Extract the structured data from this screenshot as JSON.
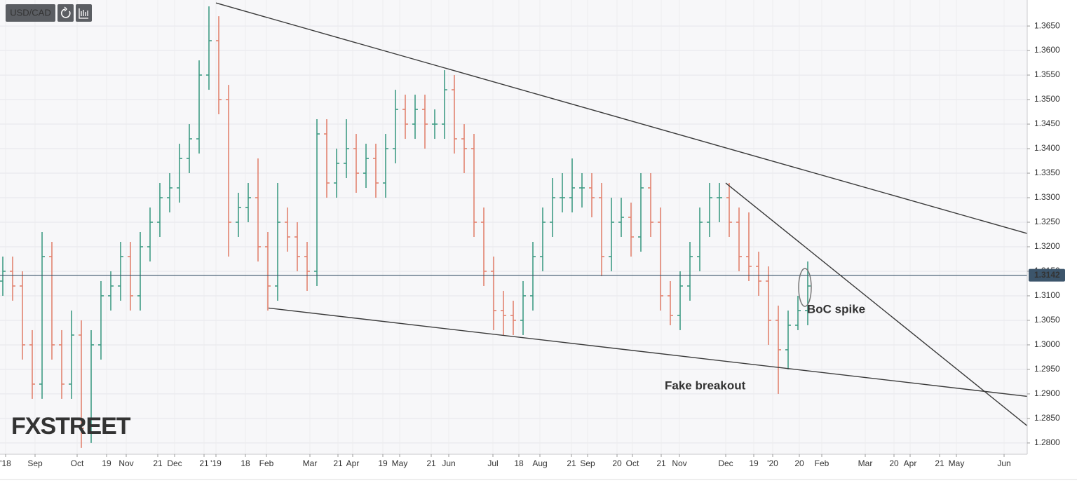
{
  "chart_data": {
    "type": "ohlc",
    "title": "USD/CAD",
    "watermark": "FXSTREET",
    "x": [
      2,
      9,
      16,
      23,
      30,
      37,
      44,
      51,
      58,
      65,
      72,
      79,
      86,
      93,
      100,
      107,
      114,
      121,
      128,
      135,
      142,
      149,
      156,
      163,
      170,
      177,
      184,
      191,
      198,
      205,
      212,
      219,
      226,
      233,
      240,
      247,
      254,
      261,
      268,
      275,
      282,
      289,
      296,
      303,
      310,
      317,
      324,
      331,
      338,
      345,
      352,
      359,
      366,
      373,
      380,
      387,
      394,
      401,
      408,
      415,
      422,
      429,
      436,
      443,
      450,
      457,
      464,
      471,
      478,
      485,
      492,
      499,
      506,
      513,
      520,
      527,
      534,
      541,
      548,
      555,
      562,
      569,
      576
    ],
    "open": [
      1.313,
      1.315,
      1.312,
      1.3,
      1.292,
      1.318,
      1.3,
      1.292,
      1.302,
      1.283,
      1.3,
      1.31,
      1.312,
      1.318,
      1.31,
      1.32,
      1.325,
      1.33,
      1.332,
      1.338,
      1.342,
      1.355,
      1.362,
      1.35,
      1.325,
      1.328,
      1.33,
      1.32,
      1.312,
      1.325,
      1.322,
      1.318,
      1.315,
      1.343,
      1.333,
      1.337,
      1.34,
      1.335,
      1.338,
      1.333,
      1.34,
      1.348,
      1.345,
      1.348,
      1.345,
      1.345,
      1.352,
      1.342,
      1.34,
      1.325,
      1.315,
      1.307,
      1.306,
      1.305,
      1.31,
      1.318,
      1.325,
      1.33,
      1.33,
      1.332,
      1.332,
      1.33,
      1.318,
      1.325,
      1.326,
      1.322,
      1.332,
      1.325,
      1.31,
      1.306,
      1.312,
      1.318,
      1.325,
      1.33,
      1.33,
      1.325,
      1.318,
      1.316,
      1.313,
      1.305,
      1.299,
      1.304,
      1.307
    ],
    "high": [
      1.318,
      1.318,
      1.315,
      1.303,
      1.323,
      1.321,
      1.303,
      1.307,
      1.305,
      1.303,
      1.313,
      1.315,
      1.321,
      1.321,
      1.323,
      1.328,
      1.333,
      1.335,
      1.341,
      1.345,
      1.358,
      1.369,
      1.367,
      1.353,
      1.331,
      1.333,
      1.338,
      1.323,
      1.333,
      1.328,
      1.325,
      1.321,
      1.346,
      1.346,
      1.34,
      1.346,
      1.343,
      1.341,
      1.341,
      1.343,
      1.352,
      1.351,
      1.351,
      1.351,
      1.348,
      1.356,
      1.355,
      1.345,
      1.343,
      1.328,
      1.318,
      1.311,
      1.309,
      1.313,
      1.321,
      1.328,
      1.334,
      1.335,
      1.338,
      1.335,
      1.335,
      1.333,
      1.33,
      1.33,
      1.329,
      1.335,
      1.335,
      1.328,
      1.313,
      1.315,
      1.321,
      1.328,
      1.333,
      1.333,
      1.333,
      1.328,
      1.327,
      1.319,
      1.316,
      1.308,
      1.307,
      1.31,
      1.317
    ],
    "low": [
      1.31,
      1.309,
      1.297,
      1.289,
      1.289,
      1.297,
      1.289,
      1.289,
      1.279,
      1.28,
      1.297,
      1.307,
      1.309,
      1.307,
      1.307,
      1.317,
      1.322,
      1.327,
      1.329,
      1.335,
      1.339,
      1.352,
      1.347,
      1.318,
      1.322,
      1.325,
      1.317,
      1.307,
      1.309,
      1.319,
      1.315,
      1.311,
      1.312,
      1.33,
      1.33,
      1.334,
      1.331,
      1.332,
      1.33,
      1.33,
      1.337,
      1.342,
      1.342,
      1.34,
      1.342,
      1.342,
      1.339,
      1.335,
      1.322,
      1.312,
      1.303,
      1.302,
      1.302,
      1.302,
      1.307,
      1.315,
      1.322,
      1.327,
      1.327,
      1.328,
      1.326,
      1.314,
      1.315,
      1.322,
      1.318,
      1.319,
      1.322,
      1.307,
      1.304,
      1.303,
      1.309,
      1.315,
      1.322,
      1.325,
      1.322,
      1.315,
      1.313,
      1.31,
      1.3,
      1.29,
      1.295,
      1.303,
      1.304
    ],
    "close": [
      1.315,
      1.312,
      1.3,
      1.292,
      1.318,
      1.3,
      1.292,
      1.302,
      1.283,
      1.3,
      1.31,
      1.312,
      1.318,
      1.31,
      1.32,
      1.325,
      1.33,
      1.332,
      1.338,
      1.342,
      1.355,
      1.362,
      1.35,
      1.325,
      1.328,
      1.33,
      1.32,
      1.312,
      1.325,
      1.322,
      1.318,
      1.315,
      1.343,
      1.333,
      1.337,
      1.34,
      1.335,
      1.338,
      1.333,
      1.34,
      1.348,
      1.345,
      1.348,
      1.345,
      1.345,
      1.352,
      1.342,
      1.34,
      1.325,
      1.315,
      1.307,
      1.306,
      1.305,
      1.31,
      1.318,
      1.325,
      1.33,
      1.33,
      1.332,
      1.332,
      1.33,
      1.318,
      1.325,
      1.326,
      1.322,
      1.332,
      1.325,
      1.31,
      1.306,
      1.312,
      1.318,
      1.325,
      1.33,
      1.33,
      1.325,
      1.318,
      1.316,
      1.313,
      1.305,
      1.299,
      1.304,
      1.307,
      1.312
    ],
    "up_color": "#3f9b84",
    "down_color": "#e2826f",
    "xlim": [
      0,
      732.5
    ],
    "ylim": [
      1.2777,
      1.3703
    ],
    "xticks": [
      {
        "value": 4,
        "label": "'18"
      },
      {
        "value": 25,
        "label": "Sep"
      },
      {
        "value": 55,
        "label": "Oct"
      },
      {
        "value": 76,
        "label": "19"
      },
      {
        "value": 90,
        "label": "Nov"
      },
      {
        "value": 112.5,
        "label": "21"
      },
      {
        "value": 124.5,
        "label": "Dec"
      },
      {
        "value": 145.5,
        "label": "21"
      },
      {
        "value": 154,
        "label": "'19"
      },
      {
        "value": 175,
        "label": "18"
      },
      {
        "value": 190,
        "label": "Feb"
      },
      {
        "value": 221,
        "label": "Mar"
      },
      {
        "value": 241,
        "label": "21"
      },
      {
        "value": 251.5,
        "label": "Apr"
      },
      {
        "value": 273,
        "label": "19"
      },
      {
        "value": 285,
        "label": "May"
      },
      {
        "value": 307.5,
        "label": "21"
      },
      {
        "value": 320,
        "label": "Jun"
      },
      {
        "value": 351.5,
        "label": "Jul"
      },
      {
        "value": 370,
        "label": "18"
      },
      {
        "value": 385,
        "label": "Aug"
      },
      {
        "value": 407.5,
        "label": "21"
      },
      {
        "value": 419,
        "label": "Sep"
      },
      {
        "value": 440,
        "label": "20"
      },
      {
        "value": 451,
        "label": "Oct"
      },
      {
        "value": 471.5,
        "label": "21"
      },
      {
        "value": 484.5,
        "label": "Nov"
      },
      {
        "value": 517.5,
        "label": "Dec"
      },
      {
        "value": 537.5,
        "label": "19"
      },
      {
        "value": 551,
        "label": "'20"
      },
      {
        "value": 570,
        "label": "20"
      },
      {
        "value": 586,
        "label": "Feb"
      },
      {
        "value": 617,
        "label": "Mar"
      },
      {
        "value": 637.5,
        "label": "20"
      },
      {
        "value": 649,
        "label": "Apr"
      },
      {
        "value": 670,
        "label": "21"
      },
      {
        "value": 682,
        "label": "May"
      },
      {
        "value": 716,
        "label": "Jun"
      }
    ],
    "yticks": [
      {
        "value": 1.28,
        "label": "1.2800"
      },
      {
        "value": 1.285,
        "label": "1.2850"
      },
      {
        "value": 1.29,
        "label": "1.2900"
      },
      {
        "value": 1.295,
        "label": "1.2950"
      },
      {
        "value": 1.3,
        "label": "1.3000"
      },
      {
        "value": 1.305,
        "label": "1.3050"
      },
      {
        "value": 1.31,
        "label": "1.3100"
      },
      {
        "value": 1.315,
        "label": "1.3150"
      },
      {
        "value": 1.32,
        "label": "1.3200"
      },
      {
        "value": 1.325,
        "label": "1.3250"
      },
      {
        "value": 1.33,
        "label": "1.3300"
      },
      {
        "value": 1.335,
        "label": "1.3350"
      },
      {
        "value": 1.34,
        "label": "1.3400"
      },
      {
        "value": 1.345,
        "label": "1.3450"
      },
      {
        "value": 1.35,
        "label": "1.3500"
      },
      {
        "value": 1.355,
        "label": "1.3550"
      },
      {
        "value": 1.36,
        "label": "1.3600"
      },
      {
        "value": 1.365,
        "label": "1.3650"
      }
    ],
    "grid": true,
    "last_price": 1.3142,
    "trendlines": [
      {
        "x": [
          154,
          732.5
        ],
        "y": [
          1.3697,
          1.3227
        ]
      },
      {
        "x": [
          191.5,
          732.5
        ],
        "y": [
          1.3075,
          1.2895
        ]
      },
      {
        "x": [
          517.5,
          732.5
        ],
        "y": [
          1.333,
          1.2835
        ]
      }
    ],
    "annotations": [
      "BoC spike",
      "Fake breakout"
    ]
  }
}
